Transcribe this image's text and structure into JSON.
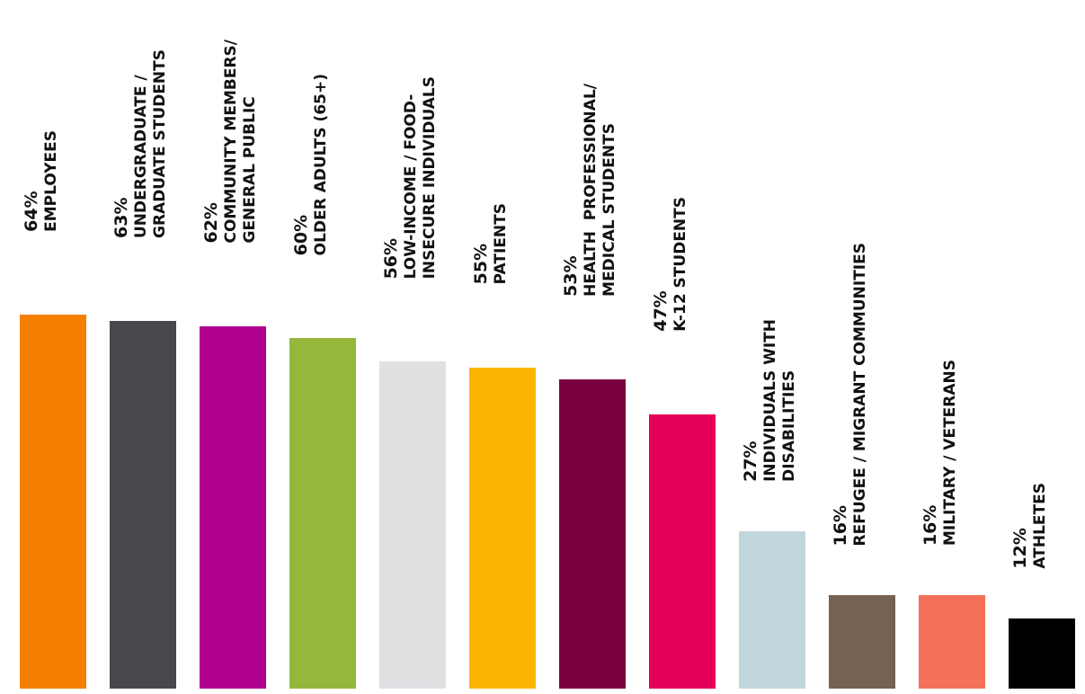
{
  "chart_data": {
    "type": "bar",
    "categories": [
      "EMPLOYEES",
      "UNDERGRADUATE /\nGRADUATE STUDENTS",
      "COMMUNITY MEMBERS/\nGENERAL PUBLIC",
      "OLDER ADULTS (65+)",
      "LOW-INCOME / FOOD-\nINSECURE INDIVIDUALS",
      "PATIENTS",
      "HEALTH  PROFESSIONAL/\nMEDICAL STUDENTS",
      "K-12 STUDENTS",
      "INDIVIDUALS WITH\nDISABILITIES",
      "REFUGEE / MIGRANT COMMUNITIES",
      "MILITARY / VETERANS",
      "ATHLETES"
    ],
    "values": [
      64,
      63,
      62,
      60,
      56,
      55,
      53,
      47,
      27,
      16,
      16,
      12
    ],
    "value_labels": [
      "64%",
      "63%",
      "62%",
      "60%",
      "56%",
      "55%",
      "53%",
      "47%",
      "27%",
      "16%",
      "16%",
      "12%"
    ],
    "colors": [
      "#f47f00",
      "#48484c",
      "#b0008e",
      "#94b73c",
      "#dfe0e2",
      "#fbb400",
      "#7b003f",
      "#e4005a",
      "#c1d5dc",
      "#766252",
      "#f47059",
      "#000000"
    ]
  }
}
